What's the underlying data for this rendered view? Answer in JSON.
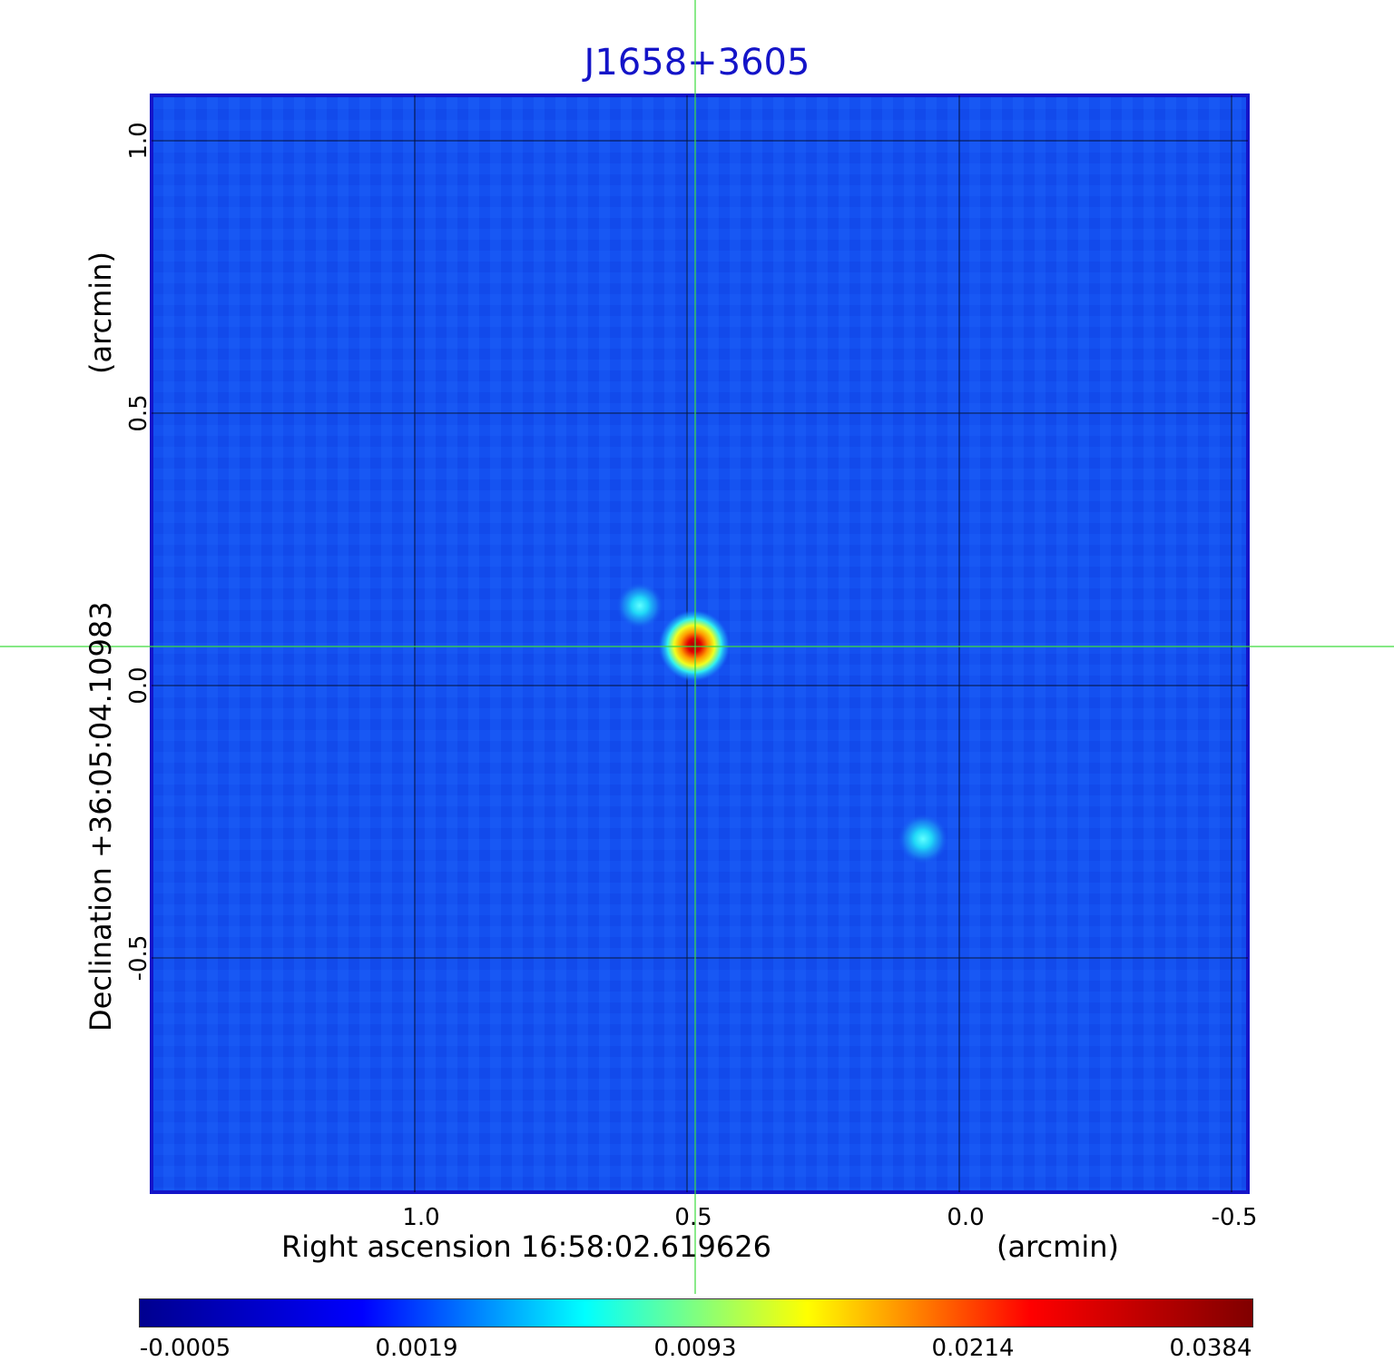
{
  "title": "J1658+3605",
  "axes": {
    "x_label": "Right ascension  16:58:02.619626",
    "x_unit": "(arcmin)",
    "y_label": "Declination  +36:05:04.10983",
    "y_unit": "(arcmin)",
    "x_ticks": [
      "1.0",
      "0.5",
      "0.0",
      "-0.5"
    ],
    "y_ticks": [
      "1.0",
      "0.5",
      "0.0",
      "-0.5"
    ]
  },
  "colorbar": {
    "colormap": "jet",
    "ticks": [
      "-0.0005",
      "0.0019",
      "0.0093",
      "0.0214",
      "0.0384"
    ],
    "colors": [
      "#00008f",
      "#0000ff",
      "#00ffff",
      "#ffff00",
      "#ff0000",
      "#800000"
    ]
  },
  "image": {
    "background_color": "#1450f0",
    "frame_color": "#1414c8",
    "grid_color": "#000000",
    "crosshair_color": "#3cdc3c"
  },
  "sources": [
    {
      "name": "primary",
      "peak": 0.0384
    },
    {
      "name": "secondary-upper-left",
      "peak": 0.006
    },
    {
      "name": "secondary-lower-right",
      "peak": 0.006
    }
  ]
}
